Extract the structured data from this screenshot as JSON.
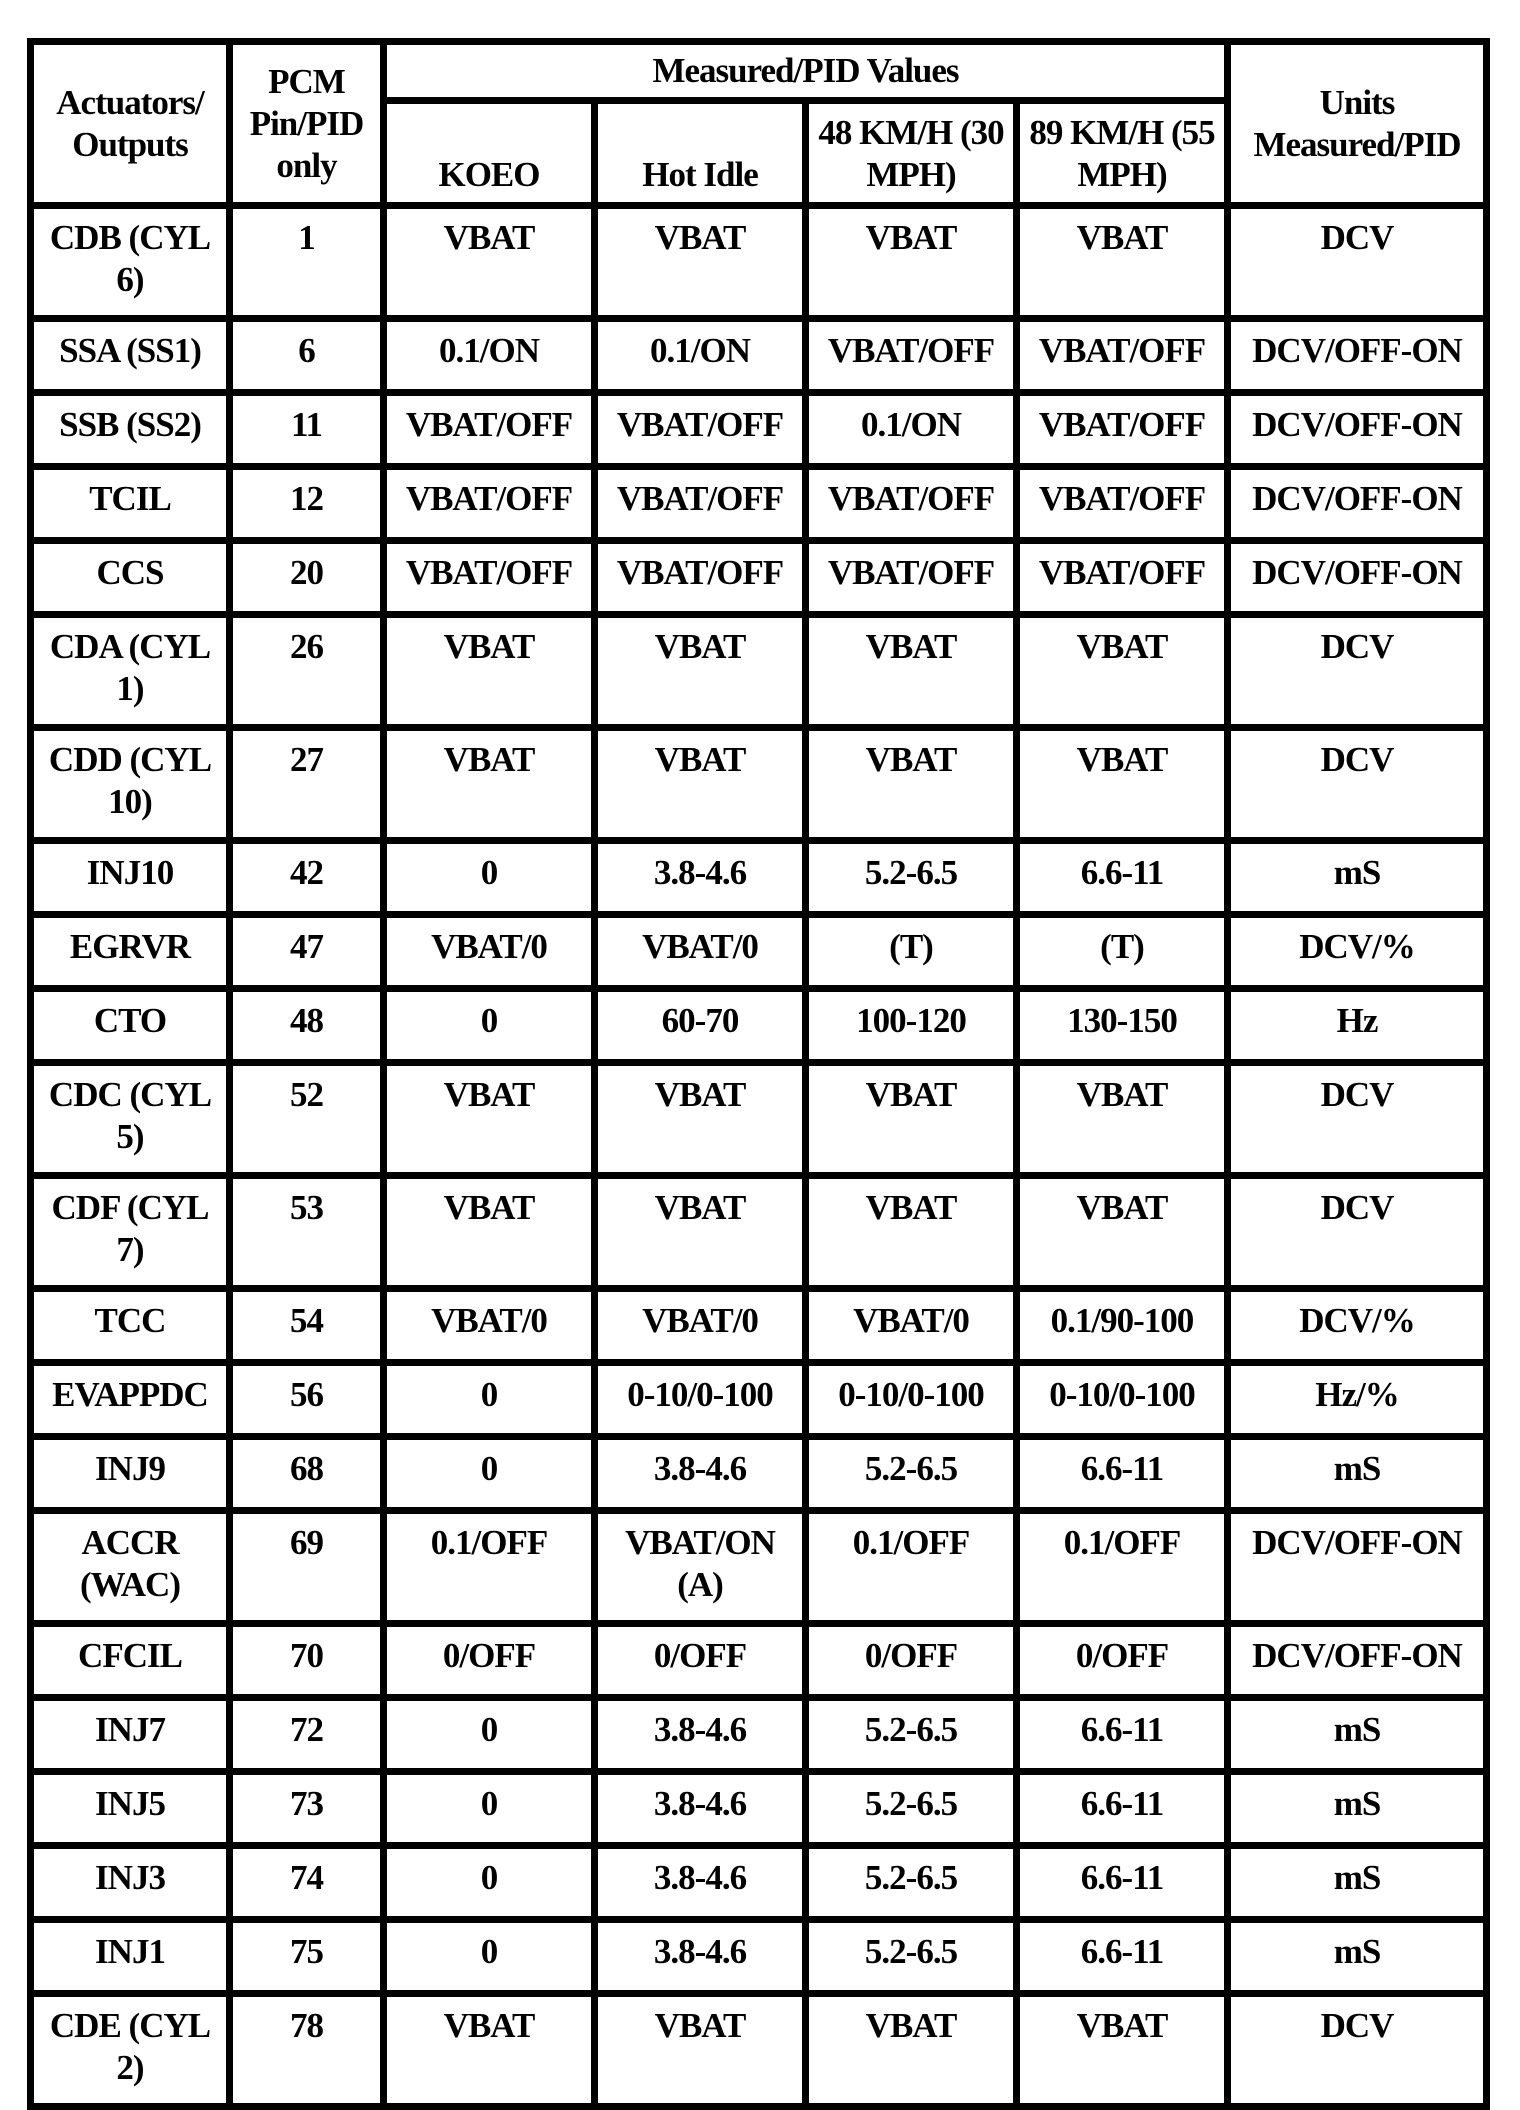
{
  "header": {
    "actuators": "Actuators/ Outputs",
    "pcm": "PCM Pin/PID only",
    "measured_group": "Measured/PID Values",
    "koeo": "KOEO",
    "hot_idle": "Hot Idle",
    "speed48": "48 KM/H (30 MPH)",
    "speed89": "89 KM/H (55 MPH)",
    "units": "Units Measured/PID"
  },
  "rows": [
    [
      "CDB (CYL 6)",
      "1",
      "VBAT",
      "VBAT",
      "VBAT",
      "VBAT",
      "DCV"
    ],
    [
      "SSA (SS1)",
      "6",
      "0.1/ON",
      "0.1/ON",
      "VBAT/OFF",
      "VBAT/OFF",
      "DCV/OFF-ON"
    ],
    [
      "SSB (SS2)",
      "11",
      "VBAT/OFF",
      "VBAT/OFF",
      "0.1/ON",
      "VBAT/OFF",
      "DCV/OFF-ON"
    ],
    [
      "TCIL",
      "12",
      "VBAT/OFF",
      "VBAT/OFF",
      "VBAT/OFF",
      "VBAT/OFF",
      "DCV/OFF-ON"
    ],
    [
      "CCS",
      "20",
      "VBAT/OFF",
      "VBAT/OFF",
      "VBAT/OFF",
      "VBAT/OFF",
      "DCV/OFF-ON"
    ],
    [
      "CDA (CYL 1)",
      "26",
      "VBAT",
      "VBAT",
      "VBAT",
      "VBAT",
      "DCV"
    ],
    [
      "CDD (CYL 10)",
      "27",
      "VBAT",
      "VBAT",
      "VBAT",
      "VBAT",
      "DCV"
    ],
    [
      "INJ10",
      "42",
      "0",
      "3.8-4.6",
      "5.2-6.5",
      "6.6-11",
      "mS"
    ],
    [
      "EGRVR",
      "47",
      "VBAT/0",
      "VBAT/0",
      "(T)",
      "(T)",
      "DCV/%"
    ],
    [
      "CTO",
      "48",
      "0",
      "60-70",
      "100-120",
      "130-150",
      "Hz"
    ],
    [
      "CDC (CYL 5)",
      "52",
      "VBAT",
      "VBAT",
      "VBAT",
      "VBAT",
      "DCV"
    ],
    [
      "CDF (CYL 7)",
      "53",
      "VBAT",
      "VBAT",
      "VBAT",
      "VBAT",
      "DCV"
    ],
    [
      "TCC",
      "54",
      "VBAT/0",
      "VBAT/0",
      "VBAT/0",
      "0.1/90-100",
      "DCV/%"
    ],
    [
      "EVAPPDC",
      "56",
      "0",
      "0-10/0-100",
      "0-10/0-100",
      "0-10/0-100",
      "Hz/%"
    ],
    [
      "INJ9",
      "68",
      "0",
      "3.8-4.6",
      "5.2-6.5",
      "6.6-11",
      "mS"
    ],
    [
      "ACCR (WAC)",
      "69",
      "0.1/OFF",
      "VBAT/ON (A)",
      "0.1/OFF",
      "0.1/OFF",
      "DCV/OFF-ON"
    ],
    [
      "CFCIL",
      "70",
      "0/OFF",
      "0/OFF",
      "0/OFF",
      "0/OFF",
      "DCV/OFF-ON"
    ],
    [
      "INJ7",
      "72",
      "0",
      "3.8-4.6",
      "5.2-6.5",
      "6.6-11",
      "mS"
    ],
    [
      "INJ5",
      "73",
      "0",
      "3.8-4.6",
      "5.2-6.5",
      "6.6-11",
      "mS"
    ],
    [
      "INJ3",
      "74",
      "0",
      "3.8-4.6",
      "5.2-6.5",
      "6.6-11",
      "mS"
    ],
    [
      "INJ1",
      "75",
      "0",
      "3.8-4.6",
      "5.2-6.5",
      "6.6-11",
      "mS"
    ],
    [
      "CDE (CYL 2)",
      "78",
      "VBAT",
      "VBAT",
      "VBAT",
      "VBAT",
      "DCV"
    ]
  ]
}
